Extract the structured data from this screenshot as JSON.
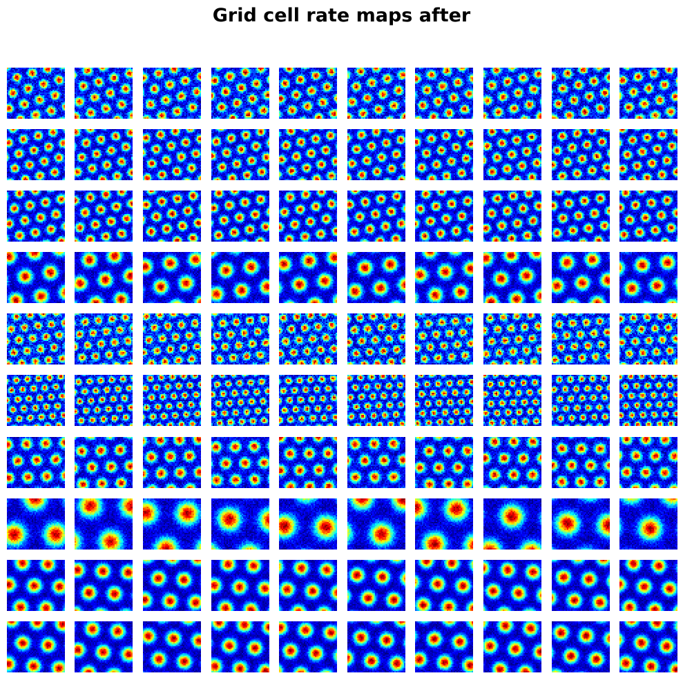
{
  "title": "Grid cell rate maps after",
  "chart_data": {
    "type": "heatmap",
    "title": "Grid cell rate maps after",
    "colormap": "jet",
    "grid_rows": 10,
    "grid_cols": 10,
    "axes_visible": false,
    "row_grid_scale": [
      1.0,
      0.95,
      1.0,
      1.6,
      0.85,
      0.7,
      1.2,
      2.6,
      1.6,
      1.6
    ],
    "row_noise": [
      0.25,
      0.2,
      0.18,
      0.15,
      0.3,
      0.25,
      0.2,
      0.15,
      0.12,
      0.12
    ]
  }
}
